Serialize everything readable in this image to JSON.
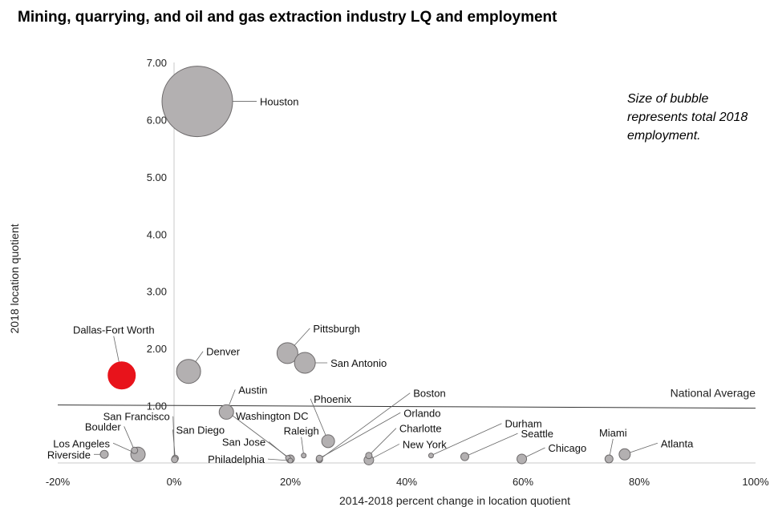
{
  "title": "Mining, quarrying, and oil and gas extraction industry LQ and employment",
  "note": {
    "line1": "Size of bubble",
    "line2": "represents total 2018",
    "line3": "employment."
  },
  "chart_data": {
    "type": "scatter",
    "bubble": true,
    "title": "Mining, quarrying, and oil and gas extraction industry LQ and employment",
    "xlabel": "2014-2018 percent change in location quotient",
    "ylabel": "2018 location quotient",
    "xlim": [
      -0.2,
      1.0
    ],
    "ylim": [
      0,
      7
    ],
    "x_ticks": [
      -0.2,
      0,
      0.2,
      0.4,
      0.6,
      0.8,
      1.0
    ],
    "x_tick_labels": [
      "-20%",
      "0%",
      "20%",
      "40%",
      "60%",
      "80%",
      "100%"
    ],
    "y_ticks": [
      1,
      2,
      3,
      4,
      5,
      6,
      7
    ],
    "y_tick_labels": [
      "1.00",
      "2.00",
      "3.00",
      "4.00",
      "5.00",
      "6.00",
      "7.00"
    ],
    "grid": false,
    "reference_line": {
      "label": "National Average",
      "y": 1.0
    },
    "highlight_color": "#e8131b",
    "bubble_color": "#b3b0b1",
    "points": [
      {
        "name": "Houston",
        "x": 0.04,
        "y": 6.32,
        "r": 44,
        "label_dx": 78,
        "label_dy": 0,
        "anchor": "start"
      },
      {
        "name": "Dallas-Fort Worth",
        "x": -0.09,
        "y": 1.53,
        "r": 17,
        "highlight": true,
        "label_dx": -10,
        "label_dy": -57,
        "anchor": "middle"
      },
      {
        "name": "Denver",
        "x": 0.025,
        "y": 1.6,
        "r": 15,
        "label_dx": 22,
        "label_dy": -25,
        "anchor": "start"
      },
      {
        "name": "Pittsburgh",
        "x": 0.195,
        "y": 1.92,
        "r": 13,
        "label_dx": 32,
        "label_dy": -31,
        "anchor": "start"
      },
      {
        "name": "San Antonio",
        "x": 0.225,
        "y": 1.75,
        "r": 13,
        "label_dx": 32,
        "label_dy": 0,
        "anchor": "start"
      },
      {
        "name": "Austin",
        "x": 0.09,
        "y": 0.89,
        "r": 9,
        "label_dx": 15,
        "label_dy": -28,
        "anchor": "start"
      },
      {
        "name": "Phoenix",
        "x": 0.265,
        "y": 0.38,
        "r": 8,
        "label_dx": -18,
        "label_dy": -53,
        "anchor": "start"
      },
      {
        "name": "Boston",
        "x": 0.25,
        "y": 0.06,
        "r": 4,
        "label_dx": 117,
        "label_dy": -83,
        "anchor": "start"
      },
      {
        "name": "Orlando",
        "x": 0.25,
        "y": 0.08,
        "r": 4,
        "label_dx": 105,
        "label_dy": -57,
        "anchor": "start"
      },
      {
        "name": "Charlotte",
        "x": 0.335,
        "y": 0.13,
        "r": 4,
        "label_dx": 38,
        "label_dy": -34,
        "anchor": "start"
      },
      {
        "name": "New York",
        "x": 0.335,
        "y": 0.05,
        "r": 6,
        "label_dx": 42,
        "label_dy": -20,
        "anchor": "start"
      },
      {
        "name": "Washington DC",
        "x": 0.2,
        "y": 0.07,
        "r": 5,
        "label_dx": -68,
        "label_dy": -54,
        "anchor": "start"
      },
      {
        "name": "Raleigh",
        "x": 0.223,
        "y": 0.13,
        "r": 3,
        "label_dx": -3,
        "label_dy": -31,
        "anchor": "middle"
      },
      {
        "name": "San Jose",
        "x": 0.196,
        "y": 0.09,
        "r": 3,
        "label_dx": -28,
        "label_dy": -20,
        "anchor": "end"
      },
      {
        "name": "Philadelphia",
        "x": 0.2,
        "y": 0.04,
        "r": 3,
        "label_dx": -32,
        "label_dy": -2,
        "anchor": "end"
      },
      {
        "name": "San Diego",
        "x": 0.002,
        "y": 0.08,
        "r": 4,
        "label_dx": 1,
        "label_dy": -36,
        "anchor": "start"
      },
      {
        "name": "San Francisco",
        "x": 0.001,
        "y": 0.06,
        "r": 4,
        "label_dx": -6,
        "label_dy": -54,
        "anchor": "end"
      },
      {
        "name": "Boulder",
        "x": -0.068,
        "y": 0.22,
        "r": 4,
        "label_dx": -17,
        "label_dy": -30,
        "anchor": "end"
      },
      {
        "name": "Los Angeles",
        "x": -0.062,
        "y": 0.15,
        "r": 9,
        "label_dx": -35,
        "label_dy": -14,
        "anchor": "end"
      },
      {
        "name": "Riverside",
        "x": -0.12,
        "y": 0.15,
        "r": 5,
        "label_dx": -17,
        "label_dy": 0,
        "anchor": "end"
      },
      {
        "name": "Durham",
        "x": 0.442,
        "y": 0.13,
        "r": 3,
        "label_dx": 92,
        "label_dy": -40,
        "anchor": "start"
      },
      {
        "name": "Seattle",
        "x": 0.5,
        "y": 0.11,
        "r": 5,
        "label_dx": 70,
        "label_dy": -29,
        "anchor": "start"
      },
      {
        "name": "Chicago",
        "x": 0.598,
        "y": 0.07,
        "r": 6,
        "label_dx": 33,
        "label_dy": -14,
        "anchor": "start"
      },
      {
        "name": "Miami",
        "x": 0.748,
        "y": 0.07,
        "r": 5,
        "label_dx": 5,
        "label_dy": -33,
        "anchor": "middle"
      },
      {
        "name": "Atlanta",
        "x": 0.775,
        "y": 0.15,
        "r": 7,
        "label_dx": 45,
        "label_dy": -14,
        "anchor": "start"
      }
    ]
  }
}
